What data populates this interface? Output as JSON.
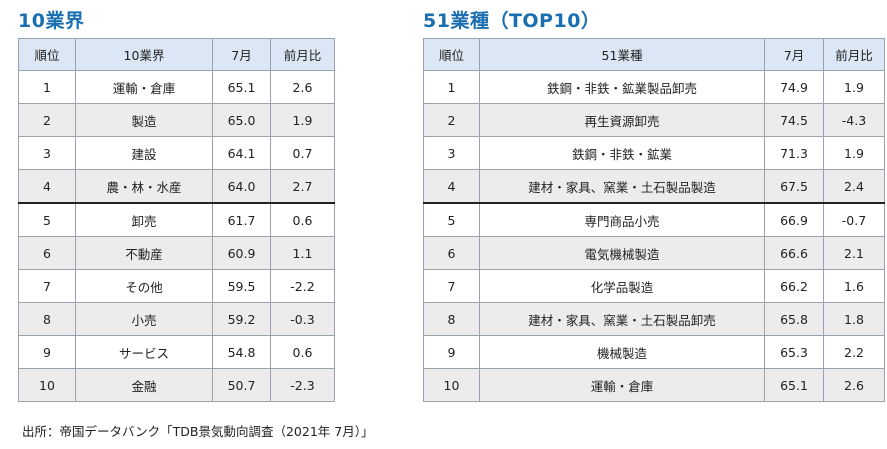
{
  "left": {
    "title": "10業界",
    "headers": [
      "順位",
      "10業界",
      "7月",
      "前月比"
    ],
    "rows": [
      {
        "rank": "1",
        "name": "運輸・倉庫",
        "value": "65.1",
        "change": "2.6"
      },
      {
        "rank": "2",
        "name": "製造",
        "value": "65.0",
        "change": "1.9"
      },
      {
        "rank": "3",
        "name": "建設",
        "value": "64.1",
        "change": "0.7"
      },
      {
        "rank": "4",
        "name": "農・林・水産",
        "value": "64.0",
        "change": "2.7"
      },
      {
        "rank": "5",
        "name": "卸売",
        "value": "61.7",
        "change": "0.6"
      },
      {
        "rank": "6",
        "name": "不動産",
        "value": "60.9",
        "change": "1.1"
      },
      {
        "rank": "7",
        "name": "その他",
        "value": "59.5",
        "change": "-2.2"
      },
      {
        "rank": "8",
        "name": "小売",
        "value": "59.2",
        "change": "-0.3"
      },
      {
        "rank": "9",
        "name": "サービス",
        "value": "54.8",
        "change": "0.6"
      },
      {
        "rank": "10",
        "name": "金融",
        "value": "50.7",
        "change": "-2.3"
      }
    ]
  },
  "right": {
    "title": "51業種（TOP10）",
    "headers": [
      "順位",
      "51業種",
      "7月",
      "前月比"
    ],
    "rows": [
      {
        "rank": "1",
        "name": "鉄鋼・非鉄・鉱業製品卸売",
        "value": "74.9",
        "change": "1.9"
      },
      {
        "rank": "2",
        "name": "再生資源卸売",
        "value": "74.5",
        "change": "-4.3"
      },
      {
        "rank": "3",
        "name": "鉄鋼・非鉄・鉱業",
        "value": "71.3",
        "change": "1.9"
      },
      {
        "rank": "4",
        "name": "建材・家具、窯業・土石製品製造",
        "value": "67.5",
        "change": "2.4"
      },
      {
        "rank": "5",
        "name": "専門商品小売",
        "value": "66.9",
        "change": "-0.7"
      },
      {
        "rank": "6",
        "name": "電気機械製造",
        "value": "66.6",
        "change": "2.1"
      },
      {
        "rank": "7",
        "name": "化学品製造",
        "value": "66.2",
        "change": "1.6"
      },
      {
        "rank": "8",
        "name": "建材・家具、窯業・土石製品卸売",
        "value": "65.8",
        "change": "1.8"
      },
      {
        "rank": "9",
        "name": "機械製造",
        "value": "65.3",
        "change": "2.2"
      },
      {
        "rank": "10",
        "name": "運輸・倉庫",
        "value": "65.1",
        "change": "2.6"
      }
    ]
  },
  "source": "出所：帝国データバンク「TDB景気動向調査（2021年 7月）」",
  "colors": {
    "title": "#1a6fb0",
    "header_bg": "#dbe7f4",
    "shade_bg": "#ececec",
    "border": "#9aa3ad"
  }
}
